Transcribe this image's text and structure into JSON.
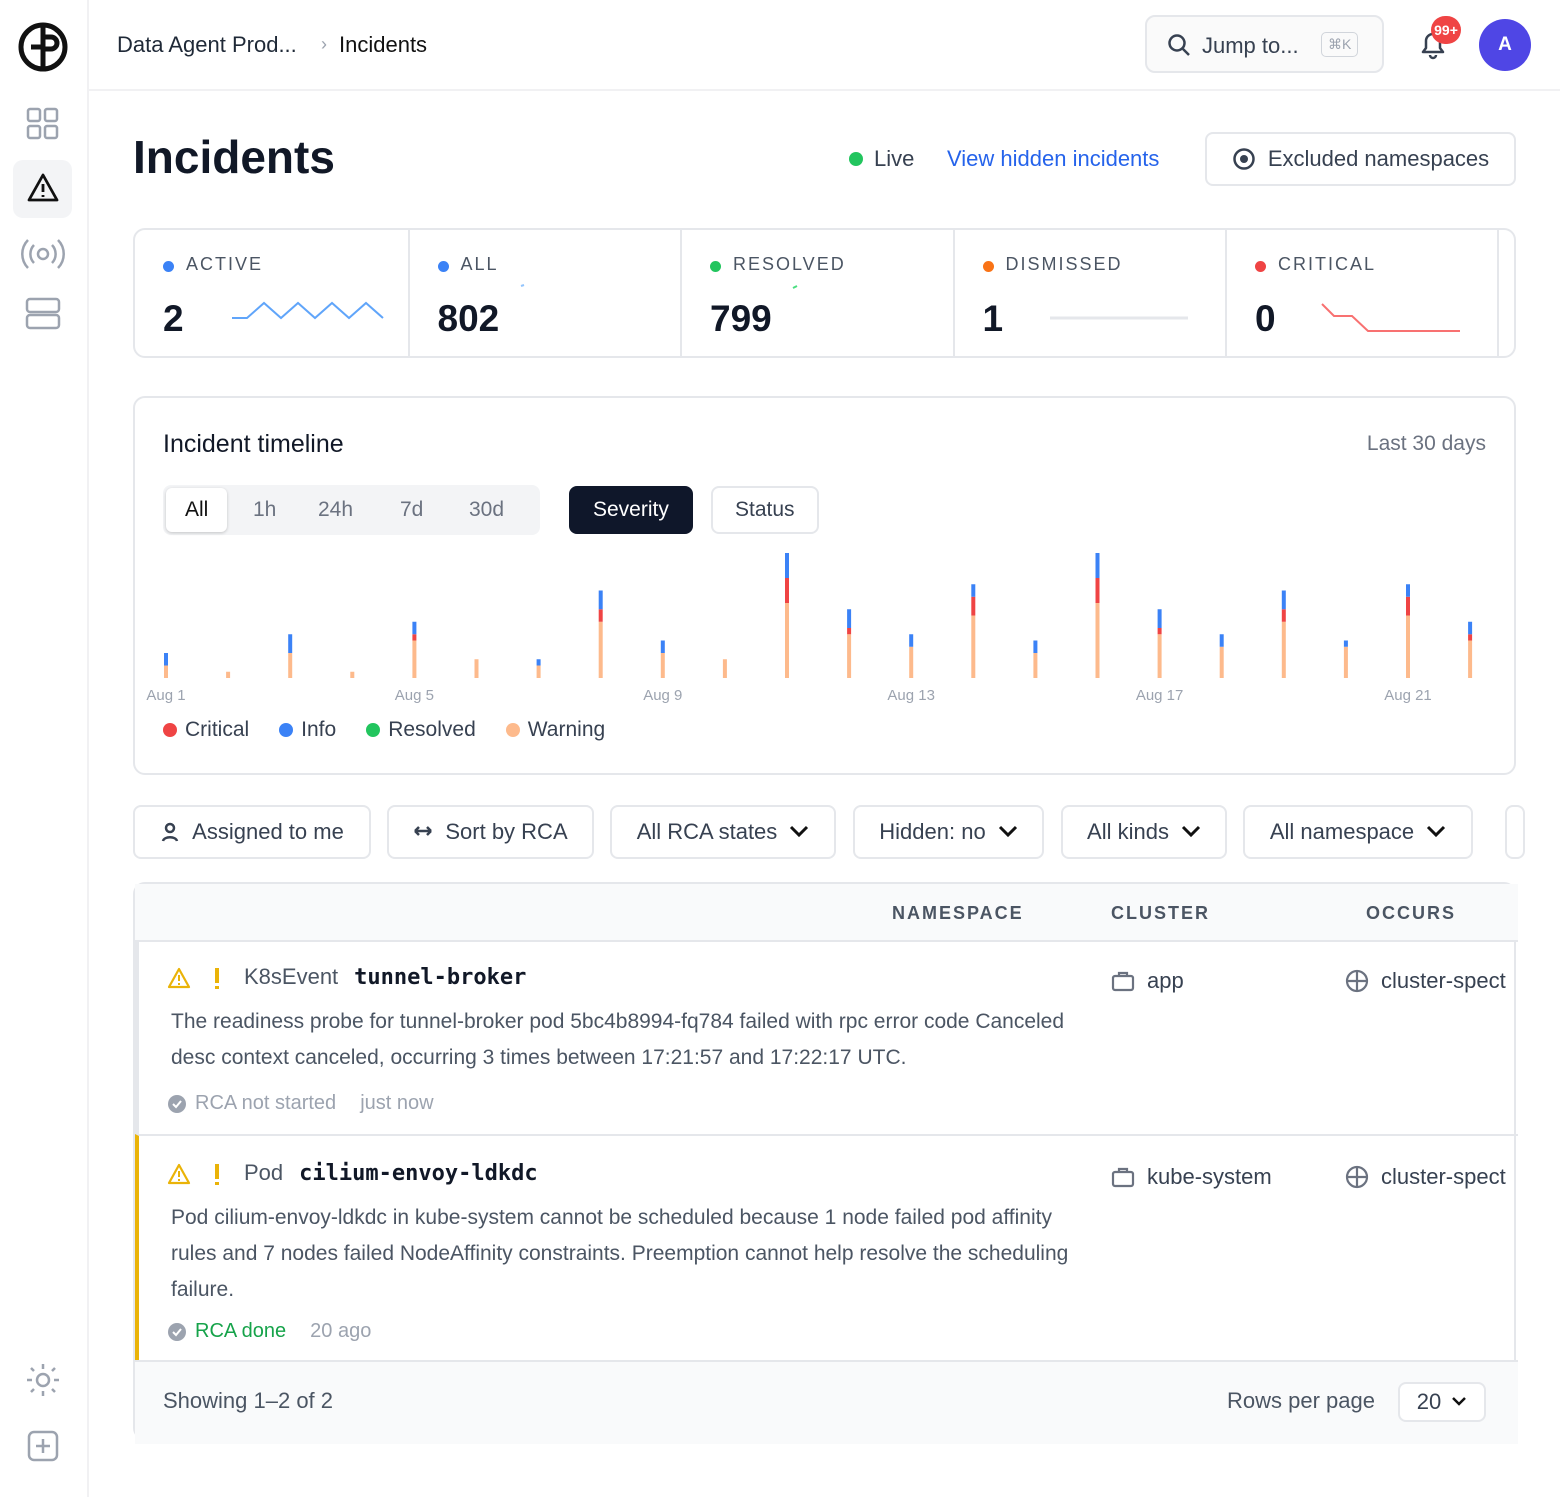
{
  "header": {
    "breadcrumb": [
      "Data Agent Prod...",
      "Incidents"
    ],
    "search": "Jump to...",
    "shortcut": "⌘K",
    "notifications": "99+",
    "avatar": "A"
  },
  "page": {
    "title": "Incidents",
    "live": "Live",
    "hidden_link": "View hidden incidents",
    "excluded": "Excluded namespaces"
  },
  "stats": [
    {
      "label": "ACTIVE",
      "value": 2,
      "color": "#3b82f6"
    },
    {
      "label": "ALL",
      "value": 802,
      "color": "#3b82f6"
    },
    {
      "label": "RESOLVED",
      "value": 799,
      "color": "#22c55e"
    },
    {
      "label": "DISMISSED",
      "value": 1,
      "color": "#f97316"
    },
    {
      "label": "CRITICAL",
      "value": 0,
      "color": "#ef4444"
    }
  ],
  "timeline": {
    "title": "Incident timeline",
    "range": "Last 30 days",
    "periods": [
      "All",
      "1h",
      "24h",
      "7d",
      "30d"
    ],
    "modes": [
      "Severity",
      "Status"
    ]
  },
  "chart_data": {
    "type": "bar",
    "stacked": true,
    "categories": [
      "Aug 1",
      null,
      null,
      null,
      "Aug 5",
      null,
      null,
      null,
      "Aug 9",
      null,
      null,
      null,
      "Aug 13",
      null,
      null,
      null,
      "Aug 17",
      null,
      null,
      null,
      "Aug 21",
      null
    ],
    "series": [
      {
        "name": "Critical",
        "color": "#ef4444",
        "values": [
          0,
          0,
          0,
          0,
          1,
          0,
          0,
          2,
          0,
          0,
          4,
          1,
          0,
          3,
          0,
          4,
          1,
          0,
          2,
          0,
          3,
          1
        ]
      },
      {
        "name": "Info",
        "color": "#3b82f6",
        "values": [
          2,
          0,
          3,
          0,
          2,
          0,
          1,
          3,
          2,
          0,
          4,
          3,
          2,
          2,
          2,
          4,
          3,
          2,
          3,
          1,
          2,
          2
        ]
      },
      {
        "name": "Resolved",
        "color": "#22c55e",
        "values": [
          0,
          0,
          0,
          0,
          0,
          0,
          0,
          0,
          0,
          0,
          0,
          0,
          0,
          0,
          0,
          0,
          0,
          0,
          0,
          0,
          0,
          0
        ]
      },
      {
        "name": "Warning",
        "color": "#fdba8c",
        "values": [
          2,
          1,
          4,
          1,
          6,
          3,
          2,
          9,
          4,
          3,
          12,
          7,
          5,
          10,
          4,
          12,
          7,
          5,
          9,
          5,
          10,
          6
        ]
      }
    ],
    "ylim": [
      0,
      20
    ]
  },
  "filters": [
    "Assigned to me",
    "Sort by RCA",
    "All RCA states",
    "Hidden: no",
    "All kinds",
    "All namespace"
  ],
  "table": {
    "headers": [
      "NAMESPACE",
      "CLUSTER",
      "OCCURS"
    ],
    "rows": [
      {
        "kind": "K8sEvent",
        "name": "tunnel-broker",
        "description": "The readiness probe for tunnel-broker pod 5bc4b8994-fq784 failed with rpc error code Canceled desc context canceled, occurring 3 times between 17:21:57 and 17:22:17 UTC.",
        "rca": "RCA not started",
        "time": "just now",
        "namespace": "app",
        "cluster": "cluster-spect"
      },
      {
        "kind": "Pod",
        "name": "cilium-envoy-ldkdc",
        "description": "Pod cilium-envoy-ldkdc in kube-system cannot be scheduled because 1 node failed pod affinity rules and 7 nodes failed NodeAffinity constraints. Preemption cannot help resolve the scheduling failure.",
        "rca": "RCA done",
        "time": "20 ago",
        "namespace": "kube-system",
        "cluster": "cluster-spect"
      }
    ]
  },
  "footer": {
    "showing": "Showing 1–2 of 2",
    "rows_per_page": "Rows per page",
    "page_size": "20"
  }
}
